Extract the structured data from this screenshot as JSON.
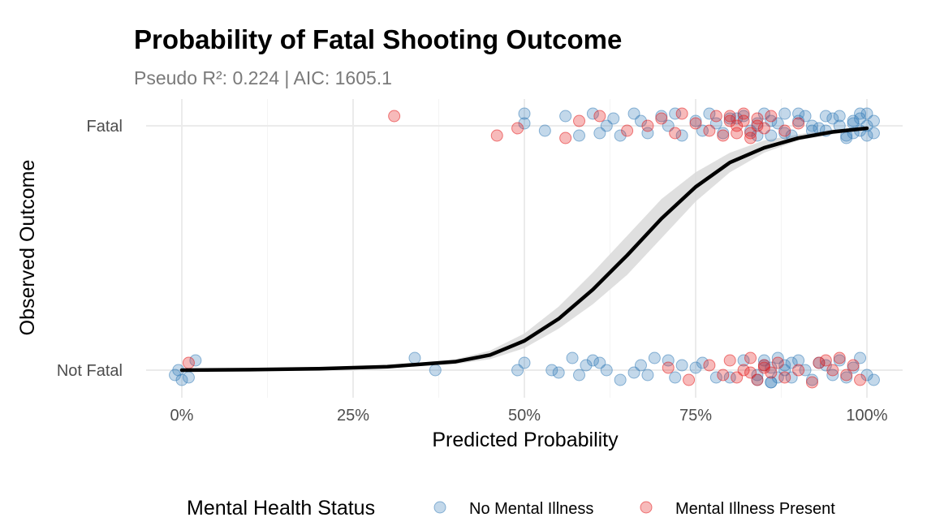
{
  "chart_data": {
    "type": "scatter",
    "title": "Probability of Fatal Shooting Outcome",
    "subtitle": "Pseudo R²: 0.224 | AIC: 1605.1",
    "xlabel": "Predicted Probability",
    "ylabel": "Observed Outcome",
    "xlim": [
      0,
      1
    ],
    "x_ticks": [
      0,
      0.25,
      0.5,
      0.75,
      1.0
    ],
    "x_tick_labels": [
      "0%",
      "25%",
      "50%",
      "75%",
      "100%"
    ],
    "y_categories": [
      "Not Fatal",
      "Fatal"
    ],
    "grid": true,
    "legend": {
      "title": "Mental Health Status",
      "position": "bottom",
      "entries": [
        {
          "name": "No Mental Illness",
          "color": "#377eb8"
        },
        {
          "name": "Mental Illness Present",
          "color": "#e41a1c"
        }
      ]
    },
    "fit_curve": {
      "x": [
        0.0,
        0.1,
        0.2,
        0.3,
        0.4,
        0.45,
        0.5,
        0.55,
        0.6,
        0.65,
        0.7,
        0.75,
        0.8,
        0.85,
        0.9,
        0.95,
        1.0
      ],
      "y": [
        0.0,
        0.002,
        0.006,
        0.014,
        0.035,
        0.062,
        0.12,
        0.21,
        0.33,
        0.47,
        0.62,
        0.75,
        0.85,
        0.91,
        0.95,
        0.975,
        0.99
      ],
      "ci_low": [
        0.0,
        0.001,
        0.004,
        0.01,
        0.025,
        0.045,
        0.09,
        0.17,
        0.27,
        0.39,
        0.54,
        0.69,
        0.81,
        0.89,
        0.94,
        0.965,
        0.985
      ],
      "ci_high": [
        0.0,
        0.003,
        0.008,
        0.018,
        0.045,
        0.08,
        0.15,
        0.26,
        0.4,
        0.55,
        0.7,
        0.81,
        0.89,
        0.94,
        0.965,
        0.985,
        0.995
      ]
    },
    "series": [
      {
        "name": "No Mental Illness",
        "color": "#377eb8",
        "fatal_x": [
          0.5,
          0.5,
          0.53,
          0.56,
          0.58,
          0.6,
          0.61,
          0.62,
          0.63,
          0.64,
          0.66,
          0.67,
          0.68,
          0.7,
          0.71,
          0.72,
          0.73,
          0.75,
          0.76,
          0.77,
          0.78,
          0.79,
          0.8,
          0.82,
          0.84,
          0.86,
          0.88,
          0.9,
          0.92,
          0.94,
          0.96,
          0.97,
          0.98,
          0.99,
          1.0,
          1.01,
          0.95,
          0.93,
          0.91,
          0.89,
          0.87,
          0.85,
          0.83,
          0.81,
          0.97,
          0.99,
          1.0,
          0.98,
          0.96,
          0.94,
          0.92,
          0.9,
          0.88,
          0.86,
          0.84,
          1.01,
          1.0,
          0.99,
          0.98
        ],
        "fatal_jitter": [
          0.05,
          0.01,
          -0.02,
          0.04,
          -0.04,
          0.05,
          -0.03,
          0.0,
          0.03,
          -0.04,
          0.05,
          0.02,
          -0.03,
          0.04,
          0.0,
          0.05,
          -0.04,
          0.02,
          -0.02,
          0.05,
          0.01,
          -0.03,
          0.03,
          0.04,
          -0.04,
          0.02,
          -0.03,
          0.05,
          0.0,
          -0.02,
          0.04,
          -0.04,
          0.02,
          0.05,
          0.0,
          -0.03,
          0.03,
          -0.01,
          0.04,
          -0.04,
          0.01,
          0.05,
          -0.02,
          0.03,
          -0.05,
          0.03,
          0.05,
          -0.03,
          0.0,
          0.04,
          -0.02,
          0.02,
          0.05,
          -0.04,
          0.01,
          0.02,
          -0.04,
          -0.02,
          0.01
        ],
        "notfatal_x": [
          -0.01,
          0.0,
          0.01,
          0.02,
          -0.005,
          0.34,
          0.37,
          0.49,
          0.5,
          0.54,
          0.55,
          0.57,
          0.58,
          0.59,
          0.6,
          0.61,
          0.62,
          0.64,
          0.66,
          0.67,
          0.68,
          0.69,
          0.71,
          0.72,
          0.73,
          0.75,
          0.76,
          0.78,
          0.8,
          0.82,
          0.84,
          0.85,
          0.86,
          0.87,
          0.88,
          0.89,
          0.9,
          0.91,
          0.92,
          0.93,
          0.94,
          0.95,
          0.96,
          0.97,
          0.98,
          0.99,
          1.0,
          1.01,
          0.86,
          0.87,
          0.85,
          0.88,
          0.84,
          0.89,
          0.86
        ],
        "notfatal_jitter": [
          -0.02,
          -0.04,
          -0.03,
          0.04,
          0.0,
          0.05,
          0.0,
          0.0,
          0.03,
          0.0,
          -0.01,
          0.05,
          -0.02,
          0.02,
          0.04,
          0.03,
          0.0,
          -0.04,
          -0.01,
          0.02,
          -0.02,
          0.05,
          0.04,
          -0.03,
          0.02,
          0.01,
          0.03,
          -0.03,
          -0.03,
          0.04,
          -0.04,
          0.02,
          -0.05,
          0.05,
          0.0,
          -0.03,
          0.04,
          0.0,
          -0.04,
          0.03,
          0.02,
          -0.02,
          0.04,
          -0.03,
          0.01,
          0.05,
          -0.02,
          -0.04,
          0.01,
          -0.03,
          0.04,
          0.02,
          -0.02,
          0.03,
          -0.05
        ]
      },
      {
        "name": "Mental Illness Present",
        "color": "#e41a1c",
        "fatal_x": [
          0.31,
          0.46,
          0.49,
          0.56,
          0.58,
          0.61,
          0.65,
          0.68,
          0.7,
          0.72,
          0.73,
          0.75,
          0.77,
          0.78,
          0.79,
          0.8,
          0.81,
          0.82,
          0.83,
          0.84,
          0.85,
          0.86,
          0.88,
          0.9,
          0.81,
          0.82,
          0.83,
          0.8,
          0.84
        ],
        "fatal_jitter": [
          0.04,
          -0.04,
          -0.01,
          -0.05,
          0.02,
          0.04,
          -0.02,
          0.0,
          0.03,
          -0.03,
          0.05,
          0.01,
          -0.02,
          0.04,
          -0.04,
          0.02,
          0.0,
          0.05,
          -0.03,
          0.03,
          -0.01,
          0.04,
          -0.02,
          0.01,
          -0.03,
          0.02,
          -0.05,
          0.04,
          0.0
        ],
        "notfatal_x": [
          0.01,
          0.71,
          0.74,
          0.77,
          0.79,
          0.8,
          0.81,
          0.82,
          0.83,
          0.84,
          0.85,
          0.86,
          0.87,
          0.88,
          0.9,
          0.92,
          0.94,
          0.96,
          0.97,
          0.98,
          0.99,
          0.95,
          0.93,
          0.83,
          0.85
        ],
        "notfatal_jitter": [
          0.03,
          0.01,
          -0.04,
          0.02,
          -0.02,
          0.04,
          -0.03,
          0.0,
          0.05,
          -0.04,
          0.02,
          -0.01,
          0.03,
          -0.03,
          0.0,
          -0.05,
          0.04,
          0.05,
          -0.02,
          0.02,
          -0.04,
          0.0,
          0.03,
          -0.01,
          0.01
        ]
      }
    ]
  }
}
